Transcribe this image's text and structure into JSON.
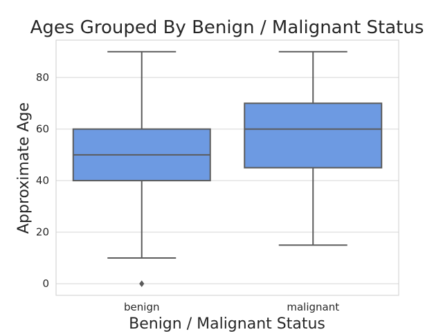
{
  "chart_data": {
    "type": "box",
    "title": "Ages Grouped By Benign / Malignant Status",
    "xlabel": "Benign / Malignant Status",
    "ylabel": "Approximate Age",
    "categories": [
      "benign",
      "malignant"
    ],
    "yticks": [
      0,
      20,
      40,
      60,
      80
    ],
    "ylim": [
      -4.5,
      94.5
    ],
    "grid": true,
    "box_color": "#6d9ae2",
    "line_color": "#5b5b5b",
    "grid_color": "#d6d6d6",
    "boxes": [
      {
        "category": "benign",
        "whisker_low": 10,
        "q1": 40,
        "median": 50,
        "q3": 60,
        "whisker_high": 90,
        "outliers": [
          0
        ]
      },
      {
        "category": "malignant",
        "whisker_low": 15,
        "q1": 45,
        "median": 60,
        "q3": 70,
        "whisker_high": 90,
        "outliers": []
      }
    ]
  }
}
